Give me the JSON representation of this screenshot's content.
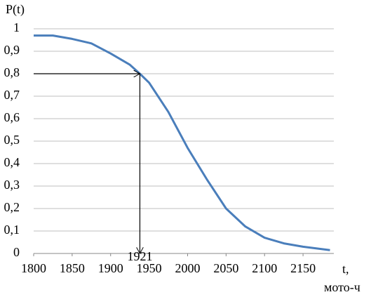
{
  "chart_data": {
    "type": "line",
    "y_label": "P(t)",
    "x_label": "t,",
    "x_unit": "мото-ч",
    "x": [
      1800,
      1825,
      1850,
      1875,
      1900,
      1925,
      1938,
      1950,
      1975,
      2000,
      2025,
      2050,
      2075,
      2100,
      2125,
      2150,
      2185
    ],
    "series": [
      {
        "color": "#4a7ebb",
        "values": [
          0.97,
          0.97,
          0.955,
          0.935,
          0.89,
          0.84,
          0.8,
          0.76,
          0.63,
          0.47,
          0.33,
          0.2,
          0.12,
          0.07,
          0.045,
          0.03,
          0.015
        ]
      }
    ],
    "xlim": [
      1800,
      2190
    ],
    "ylim": [
      0,
      1
    ],
    "xticks": [
      1800,
      1850,
      1900,
      1950,
      2000,
      2050,
      2100,
      2150
    ],
    "yticks": [
      0,
      {
        "value": 0.1,
        "label": "0,1"
      },
      {
        "value": 0.2,
        "label": "0,2"
      },
      {
        "value": 0.3,
        "label": "0,3"
      },
      {
        "value": 0.4,
        "label": "0,4"
      },
      {
        "value": 0.5,
        "label": "0,5"
      },
      {
        "value": 0.6,
        "label": "0,6"
      },
      {
        "value": 0.7,
        "label": "0,7"
      },
      {
        "value": 0.8,
        "label": "0,8"
      },
      {
        "value": 0.9,
        "label": "0,9"
      },
      1
    ],
    "grid": true,
    "annotation": {
      "text": "1921",
      "x": 1938,
      "y": 0.8
    }
  }
}
